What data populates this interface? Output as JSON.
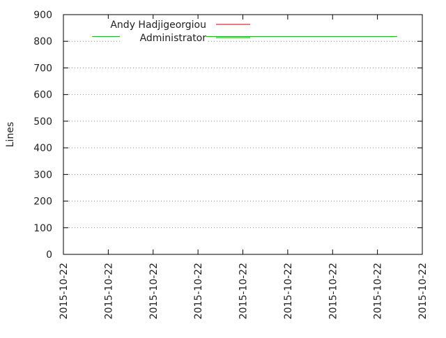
{
  "chart_data": {
    "type": "line",
    "ylabel": "Lines",
    "ylim": [
      0,
      900
    ],
    "yticks": [
      0,
      100,
      200,
      300,
      400,
      500,
      600,
      700,
      800,
      900
    ],
    "xtick_labels": [
      "2015-10-22",
      "2015-10-22",
      "2015-10-22",
      "2015-10-22",
      "2015-10-22",
      "2015-10-22",
      "2015-10-22",
      "2015-10-22",
      "2015-10-22"
    ],
    "grid": true,
    "legend_position": "top-left",
    "series": [
      {
        "name": "Andy Hadjigeorgiou",
        "color": "#cc0000",
        "values": []
      },
      {
        "name": "Administrator",
        "color": "#00aa00",
        "start_fraction": 0.08,
        "end_fraction": 0.93,
        "values": [
          818,
          818
        ]
      }
    ]
  }
}
